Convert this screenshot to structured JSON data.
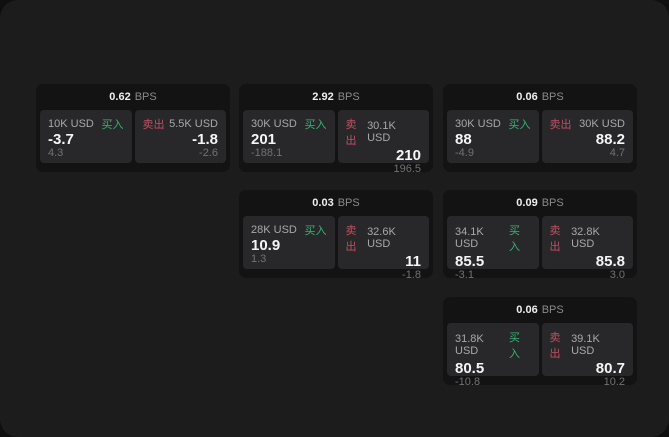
{
  "labels": {
    "bps_unit": "BPS",
    "buy": "买入",
    "sell": "卖出"
  },
  "colors": {
    "backdrop": "#0f0f10",
    "window_bg": "#1c1c1d",
    "card_bg": "#131314",
    "panel_bg": "#28282a",
    "buy_green": "#36b374",
    "sell_red": "#c14f63",
    "price_text": "#f5f5f5",
    "label_text": "#a8a8aa",
    "delta_text": "#717173"
  },
  "cards": [
    {
      "row": 1,
      "col": 1,
      "bps": "0.62",
      "left": {
        "amount": "10K USD",
        "price": "-3.7",
        "delta": "4.3"
      },
      "right": {
        "amount": "5.5K USD",
        "price": "-1.8",
        "delta": "-2.6"
      }
    },
    {
      "row": 1,
      "col": 2,
      "bps": "2.92",
      "left": {
        "amount": "30K USD",
        "price": "201",
        "delta": "-188.1"
      },
      "right": {
        "amount": "30.1K USD",
        "price": "210",
        "delta": "196.5"
      }
    },
    {
      "row": 1,
      "col": 3,
      "bps": "0.06",
      "left": {
        "amount": "30K USD",
        "price": "88",
        "delta": "-4.9"
      },
      "right": {
        "amount": "30K USD",
        "price": "88.2",
        "delta": "4.7"
      }
    },
    {
      "row": 2,
      "col": 2,
      "bps": "0.03",
      "left": {
        "amount": "28K USD",
        "price": "10.9",
        "delta": "1.3"
      },
      "right": {
        "amount": "32.6K USD",
        "price": "11",
        "delta": "-1.8"
      }
    },
    {
      "row": 2,
      "col": 3,
      "bps": "0.09",
      "left": {
        "amount": "34.1K USD",
        "price": "85.5",
        "delta": "-3.1"
      },
      "right": {
        "amount": "32.8K USD",
        "price": "85.8",
        "delta": "3.0"
      }
    },
    {
      "row": 3,
      "col": 3,
      "bps": "0.06",
      "left": {
        "amount": "31.8K USD",
        "price": "80.5",
        "delta": "-10.8"
      },
      "right": {
        "amount": "39.1K USD",
        "price": "80.7",
        "delta": "10.2"
      }
    }
  ]
}
